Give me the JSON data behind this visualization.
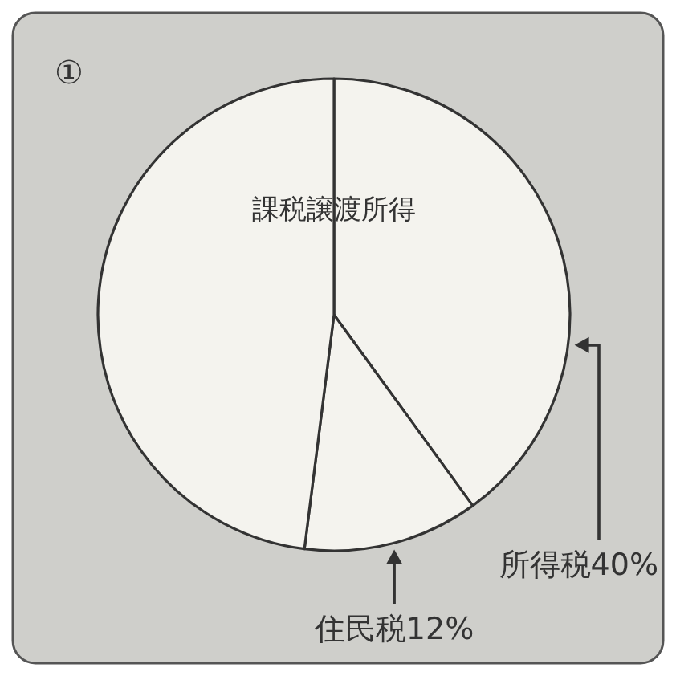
{
  "chart_data": {
    "type": "pie",
    "title": "課税譲渡所得",
    "annotations": [
      "①"
    ],
    "categories": [
      "所得税",
      "住民税",
      null
    ],
    "values": [
      40,
      12,
      48
    ],
    "value_labels": [
      "40%",
      "12%",
      null
    ],
    "colors": [
      "#f4f3ee",
      "#f4f3ee",
      "#f4f3ee"
    ]
  }
}
